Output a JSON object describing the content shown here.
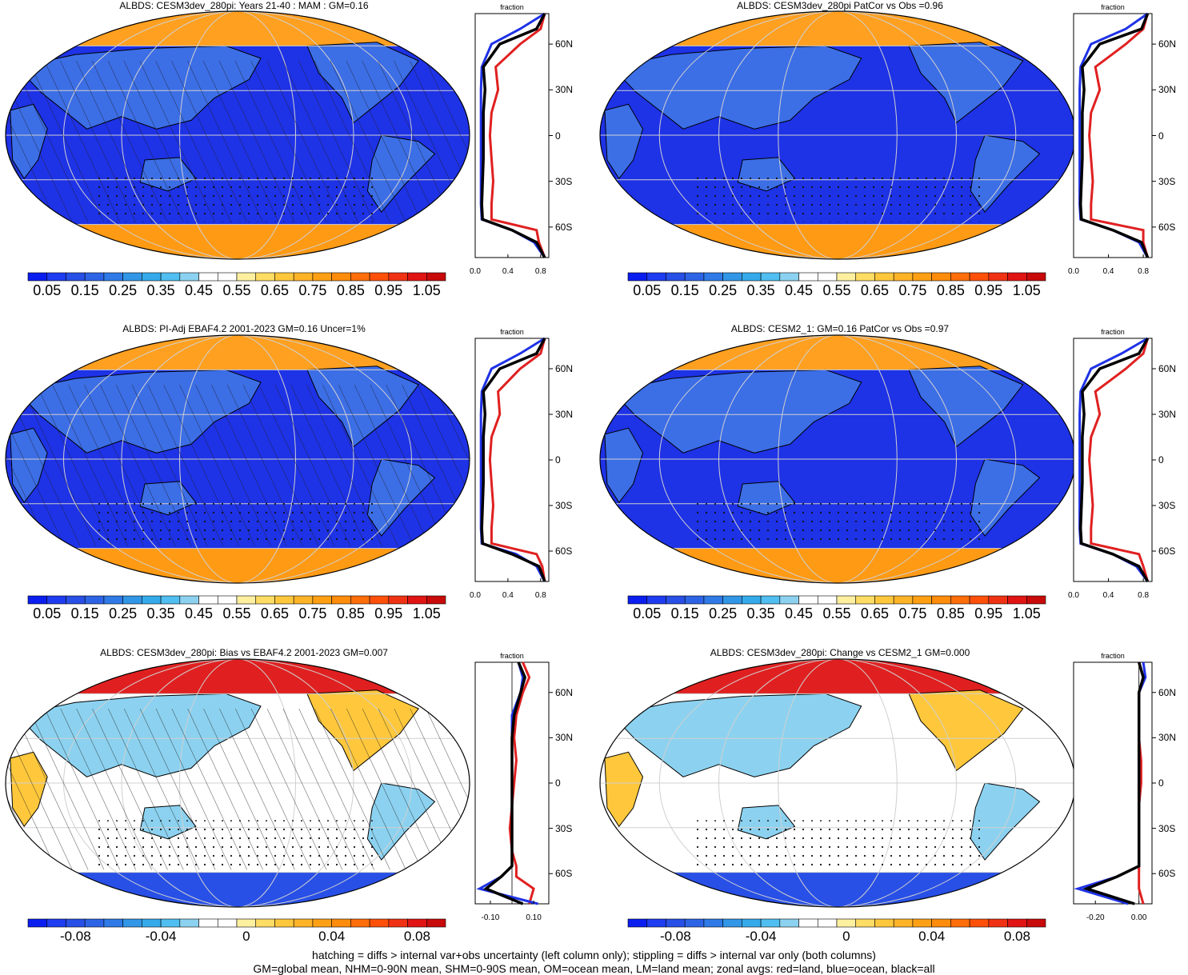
{
  "colors": {
    "abs_scale": [
      "#0a1ef0",
      "#1e3cf0",
      "#2850e6",
      "#2d64e6",
      "#2f7ae6",
      "#3296e6",
      "#34aaeb",
      "#50bef0",
      "#8cd2f0",
      "#ffffff",
      "#ffffff",
      "#fff0a0",
      "#ffdc64",
      "#ffc83c",
      "#ffb428",
      "#ffa014",
      "#ff8c0a",
      "#ff6e0a",
      "#ff500a",
      "#f03214",
      "#e11414",
      "#c80a0a"
    ],
    "diff_scale": [
      "#0a1ef0",
      "#1e3cf0",
      "#2850e6",
      "#2d64e6",
      "#2f7ae6",
      "#3296e6",
      "#34aaeb",
      "#50bef0",
      "#8cd2f0",
      "#ffffff",
      "#ffffff",
      "#fff0a0",
      "#ffdc64",
      "#ffc83c",
      "#ffb428",
      "#ffa014",
      "#ff8c0a",
      "#ff6e0a",
      "#ff500a",
      "#f03214",
      "#e11414",
      "#c80a0a"
    ],
    "land": "#e02020",
    "ocean": "#1e32e6",
    "all": "#000000"
  },
  "abs_ticks": [
    "0.05",
    "0.15",
    "0.25",
    "0.35",
    "0.45",
    "0.55",
    "0.65",
    "0.75",
    "0.85",
    "0.95",
    "1.05"
  ],
  "diff_ticks": [
    "-0.08",
    "-0.04",
    "0",
    "0.04",
    "0.08"
  ],
  "lat_ticks": [
    "60N",
    "30N",
    "0",
    "30S",
    "60S"
  ],
  "zonal_label": "fraction",
  "panels": {
    "p1": {
      "title": "ALBDS: CESM3dev_280pi: Years 21-40 : MAM : GM=0.16",
      "xticks": [
        "0.0",
        "0.4",
        "0.8"
      ]
    },
    "p2": {
      "title": "ALBDS: CESM3dev_280pi PatCor vs Obs =0.96",
      "xticks": [
        "0.0",
        "0.4",
        "0.8"
      ]
    },
    "p3": {
      "title": "ALBDS: PI-Adj EBAF4.2 2001-2023 GM=0.16 Uncer=1%",
      "xticks": [
        "0.0",
        "0.4",
        "0.8"
      ]
    },
    "p4": {
      "title": "ALBDS: CESM2_1: GM=0.16 PatCor vs Obs =0.97",
      "xticks": [
        "0.0",
        "0.4",
        "0.8"
      ]
    },
    "p5": {
      "title": "ALBDS: CESM3dev_280pi: Bias vs EBAF4.2 2001-2023 GM=0.007",
      "xticks": [
        "-0.10",
        "0.10"
      ]
    },
    "p6": {
      "title": "ALBDS: CESM3dev_280pi: Change vs CESM2_1 GM=0.000",
      "xticks": [
        "-0.20",
        "0.00"
      ]
    }
  },
  "footer": {
    "line1": "hatching = diffs > internal var+obs uncertainty (left column only); stippling = diffs > internal var only (both columns)",
    "line2": "GM=global mean, NHM=0-90N mean, SHM=0-90S mean, OM=ocean mean, LM=land mean; zonal avgs: red=land, blue=ocean, black=all"
  },
  "chart_data": [
    {
      "type": "heatmap",
      "title": "ALBDS: CESM3dev_280pi: Years 21-40 : MAM : GM=0.16",
      "colorbar": [
        0.05,
        0.15,
        0.25,
        0.35,
        0.45,
        0.55,
        0.65,
        0.75,
        0.85,
        0.95,
        1.05
      ],
      "zonal": {
        "lat": [
          80,
          70,
          60,
          45,
          30,
          15,
          0,
          -15,
          -30,
          -45,
          -55,
          -62,
          -70,
          -80
        ],
        "land": [
          0.85,
          0.8,
          0.55,
          0.25,
          0.28,
          0.2,
          0.18,
          0.2,
          0.22,
          0.2,
          0.2,
          0.75,
          0.78,
          0.85
        ],
        "ocean": [
          0.85,
          0.55,
          0.2,
          0.08,
          0.07,
          0.07,
          0.07,
          0.07,
          0.07,
          0.07,
          0.08,
          0.45,
          0.72,
          0.85
        ],
        "all": [
          0.85,
          0.75,
          0.3,
          0.1,
          0.12,
          0.1,
          0.1,
          0.1,
          0.09,
          0.08,
          0.09,
          0.45,
          0.75,
          0.85
        ]
      }
    },
    {
      "type": "heatmap",
      "title": "ALBDS: CESM3dev_280pi PatCor vs Obs =0.96",
      "zonal": {
        "lat": [
          80,
          70,
          60,
          45,
          30,
          15,
          0,
          -15,
          -30,
          -45,
          -55,
          -62,
          -70,
          -80
        ],
        "land": [
          0.85,
          0.8,
          0.6,
          0.25,
          0.3,
          0.2,
          0.18,
          0.2,
          0.22,
          0.2,
          0.2,
          0.8,
          0.8,
          0.85
        ],
        "ocean": [
          0.85,
          0.6,
          0.2,
          0.08,
          0.07,
          0.07,
          0.07,
          0.07,
          0.07,
          0.07,
          0.08,
          0.45,
          0.75,
          0.85
        ],
        "all": [
          0.85,
          0.78,
          0.3,
          0.1,
          0.12,
          0.1,
          0.1,
          0.1,
          0.09,
          0.08,
          0.09,
          0.45,
          0.78,
          0.85
        ]
      }
    },
    {
      "type": "heatmap",
      "title": "ALBDS: PI-Adj EBAF4.2 2001-2023 GM=0.16 Uncer=1%",
      "zonal": {
        "lat": [
          80,
          70,
          60,
          45,
          30,
          15,
          0,
          -15,
          -30,
          -45,
          -55,
          -62,
          -70,
          -80
        ],
        "land": [
          0.85,
          0.8,
          0.55,
          0.28,
          0.3,
          0.2,
          0.18,
          0.2,
          0.22,
          0.2,
          0.2,
          0.75,
          0.82,
          0.85
        ],
        "ocean": [
          0.85,
          0.55,
          0.2,
          0.08,
          0.07,
          0.07,
          0.07,
          0.07,
          0.07,
          0.07,
          0.08,
          0.5,
          0.75,
          0.85
        ],
        "all": [
          0.85,
          0.75,
          0.3,
          0.1,
          0.12,
          0.1,
          0.1,
          0.1,
          0.09,
          0.08,
          0.09,
          0.45,
          0.78,
          0.85
        ]
      }
    },
    {
      "type": "heatmap",
      "title": "ALBDS: CESM2_1: GM=0.16 PatCor vs Obs =0.97",
      "zonal": {
        "lat": [
          80,
          70,
          60,
          45,
          30,
          15,
          0,
          -15,
          -30,
          -45,
          -55,
          -62,
          -70,
          -80
        ],
        "land": [
          0.85,
          0.8,
          0.6,
          0.25,
          0.3,
          0.2,
          0.18,
          0.2,
          0.22,
          0.2,
          0.2,
          0.75,
          0.8,
          0.85
        ],
        "ocean": [
          0.85,
          0.55,
          0.2,
          0.08,
          0.07,
          0.07,
          0.07,
          0.07,
          0.07,
          0.07,
          0.08,
          0.45,
          0.72,
          0.85
        ],
        "all": [
          0.85,
          0.75,
          0.3,
          0.1,
          0.12,
          0.1,
          0.1,
          0.1,
          0.09,
          0.08,
          0.09,
          0.45,
          0.75,
          0.85
        ]
      }
    },
    {
      "type": "heatmap",
      "title": "ALBDS: CESM3dev_280pi: Bias vs EBAF4.2 2001-2023 GM=0.007",
      "colorbar": [
        -0.08,
        -0.04,
        0,
        0.04,
        0.08
      ],
      "zonal": {
        "lat": [
          80,
          70,
          60,
          45,
          30,
          15,
          0,
          -15,
          -30,
          -45,
          -55,
          -62,
          -70,
          -80
        ],
        "land": [
          0.05,
          0.08,
          0.05,
          0.02,
          0.01,
          0.02,
          0.01,
          0.0,
          -0.01,
          0.0,
          0.02,
          0.02,
          0.1,
          0.08
        ],
        "ocean": [
          0.03,
          0.05,
          0.04,
          0.0,
          0.0,
          0.0,
          0.0,
          0.0,
          0.0,
          0.0,
          0.0,
          -0.05,
          -0.15,
          0.12
        ],
        "all": [
          0.03,
          0.06,
          0.04,
          0.01,
          0.0,
          0.0,
          0.0,
          0.0,
          0.0,
          0.0,
          0.0,
          -0.05,
          -0.12,
          0.05
        ]
      }
    },
    {
      "type": "heatmap",
      "title": "ALBDS: CESM3dev_280pi: Change vs CESM2_1 GM=0.000",
      "zonal": {
        "lat": [
          80,
          70,
          60,
          45,
          30,
          15,
          0,
          -15,
          -30,
          -45,
          -55,
          -62,
          -70,
          -80
        ],
        "land": [
          0.0,
          0.02,
          0.0,
          0.0,
          0.0,
          0.01,
          0.01,
          0.0,
          0.0,
          0.0,
          0.0,
          0.0,
          0.0,
          0.02
        ],
        "ocean": [
          0.02,
          0.03,
          0.0,
          0.0,
          0.0,
          0.0,
          0.0,
          0.0,
          0.0,
          0.0,
          0.0,
          -0.1,
          -0.28,
          -0.05
        ],
        "all": [
          0.0,
          0.02,
          0.0,
          0.0,
          0.0,
          0.0,
          0.0,
          0.0,
          0.0,
          0.0,
          0.0,
          -0.1,
          -0.24,
          -0.02
        ]
      }
    }
  ]
}
